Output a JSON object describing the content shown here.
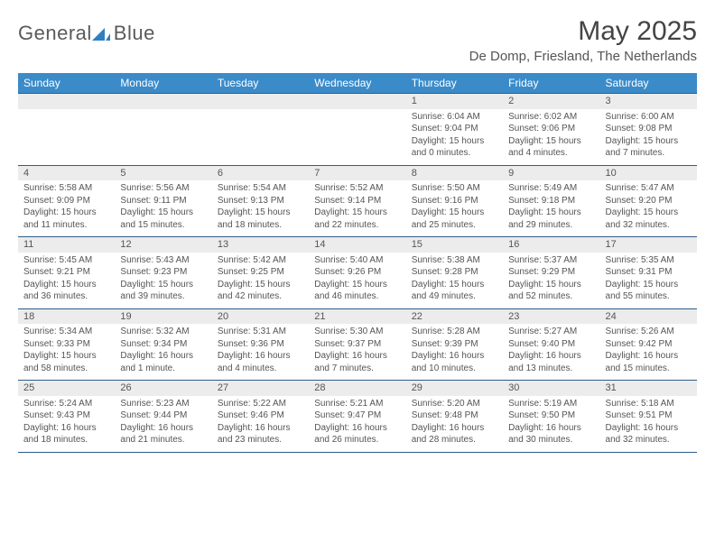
{
  "brand": {
    "part1": "General",
    "part2": "Blue"
  },
  "title": "May 2025",
  "location": "De Domp, Friesland, The Netherlands",
  "colors": {
    "header_bg": "#3b8bc9",
    "header_text": "#ffffff",
    "daynum_bg": "#ececec",
    "border": "#2d5d8a",
    "text": "#555555",
    "brand_gray": "#5a5a5a",
    "brand_blue": "#2f7fc2",
    "page_bg": "#ffffff"
  },
  "day_headers": [
    "Sunday",
    "Monday",
    "Tuesday",
    "Wednesday",
    "Thursday",
    "Friday",
    "Saturday"
  ],
  "first_day_index": 4,
  "days": [
    {
      "n": 1,
      "sunrise": "6:04 AM",
      "sunset": "9:04 PM",
      "daylight": "15 hours and 0 minutes."
    },
    {
      "n": 2,
      "sunrise": "6:02 AM",
      "sunset": "9:06 PM",
      "daylight": "15 hours and 4 minutes."
    },
    {
      "n": 3,
      "sunrise": "6:00 AM",
      "sunset": "9:08 PM",
      "daylight": "15 hours and 7 minutes."
    },
    {
      "n": 4,
      "sunrise": "5:58 AM",
      "sunset": "9:09 PM",
      "daylight": "15 hours and 11 minutes."
    },
    {
      "n": 5,
      "sunrise": "5:56 AM",
      "sunset": "9:11 PM",
      "daylight": "15 hours and 15 minutes."
    },
    {
      "n": 6,
      "sunrise": "5:54 AM",
      "sunset": "9:13 PM",
      "daylight": "15 hours and 18 minutes."
    },
    {
      "n": 7,
      "sunrise": "5:52 AM",
      "sunset": "9:14 PM",
      "daylight": "15 hours and 22 minutes."
    },
    {
      "n": 8,
      "sunrise": "5:50 AM",
      "sunset": "9:16 PM",
      "daylight": "15 hours and 25 minutes."
    },
    {
      "n": 9,
      "sunrise": "5:49 AM",
      "sunset": "9:18 PM",
      "daylight": "15 hours and 29 minutes."
    },
    {
      "n": 10,
      "sunrise": "5:47 AM",
      "sunset": "9:20 PM",
      "daylight": "15 hours and 32 minutes."
    },
    {
      "n": 11,
      "sunrise": "5:45 AM",
      "sunset": "9:21 PM",
      "daylight": "15 hours and 36 minutes."
    },
    {
      "n": 12,
      "sunrise": "5:43 AM",
      "sunset": "9:23 PM",
      "daylight": "15 hours and 39 minutes."
    },
    {
      "n": 13,
      "sunrise": "5:42 AM",
      "sunset": "9:25 PM",
      "daylight": "15 hours and 42 minutes."
    },
    {
      "n": 14,
      "sunrise": "5:40 AM",
      "sunset": "9:26 PM",
      "daylight": "15 hours and 46 minutes."
    },
    {
      "n": 15,
      "sunrise": "5:38 AM",
      "sunset": "9:28 PM",
      "daylight": "15 hours and 49 minutes."
    },
    {
      "n": 16,
      "sunrise": "5:37 AM",
      "sunset": "9:29 PM",
      "daylight": "15 hours and 52 minutes."
    },
    {
      "n": 17,
      "sunrise": "5:35 AM",
      "sunset": "9:31 PM",
      "daylight": "15 hours and 55 minutes."
    },
    {
      "n": 18,
      "sunrise": "5:34 AM",
      "sunset": "9:33 PM",
      "daylight": "15 hours and 58 minutes."
    },
    {
      "n": 19,
      "sunrise": "5:32 AM",
      "sunset": "9:34 PM",
      "daylight": "16 hours and 1 minute."
    },
    {
      "n": 20,
      "sunrise": "5:31 AM",
      "sunset": "9:36 PM",
      "daylight": "16 hours and 4 minutes."
    },
    {
      "n": 21,
      "sunrise": "5:30 AM",
      "sunset": "9:37 PM",
      "daylight": "16 hours and 7 minutes."
    },
    {
      "n": 22,
      "sunrise": "5:28 AM",
      "sunset": "9:39 PM",
      "daylight": "16 hours and 10 minutes."
    },
    {
      "n": 23,
      "sunrise": "5:27 AM",
      "sunset": "9:40 PM",
      "daylight": "16 hours and 13 minutes."
    },
    {
      "n": 24,
      "sunrise": "5:26 AM",
      "sunset": "9:42 PM",
      "daylight": "16 hours and 15 minutes."
    },
    {
      "n": 25,
      "sunrise": "5:24 AM",
      "sunset": "9:43 PM",
      "daylight": "16 hours and 18 minutes."
    },
    {
      "n": 26,
      "sunrise": "5:23 AM",
      "sunset": "9:44 PM",
      "daylight": "16 hours and 21 minutes."
    },
    {
      "n": 27,
      "sunrise": "5:22 AM",
      "sunset": "9:46 PM",
      "daylight": "16 hours and 23 minutes."
    },
    {
      "n": 28,
      "sunrise": "5:21 AM",
      "sunset": "9:47 PM",
      "daylight": "16 hours and 26 minutes."
    },
    {
      "n": 29,
      "sunrise": "5:20 AM",
      "sunset": "9:48 PM",
      "daylight": "16 hours and 28 minutes."
    },
    {
      "n": 30,
      "sunrise": "5:19 AM",
      "sunset": "9:50 PM",
      "daylight": "16 hours and 30 minutes."
    },
    {
      "n": 31,
      "sunrise": "5:18 AM",
      "sunset": "9:51 PM",
      "daylight": "16 hours and 32 minutes."
    }
  ],
  "labels": {
    "sunrise": "Sunrise:",
    "sunset": "Sunset:",
    "daylight": "Daylight:"
  }
}
